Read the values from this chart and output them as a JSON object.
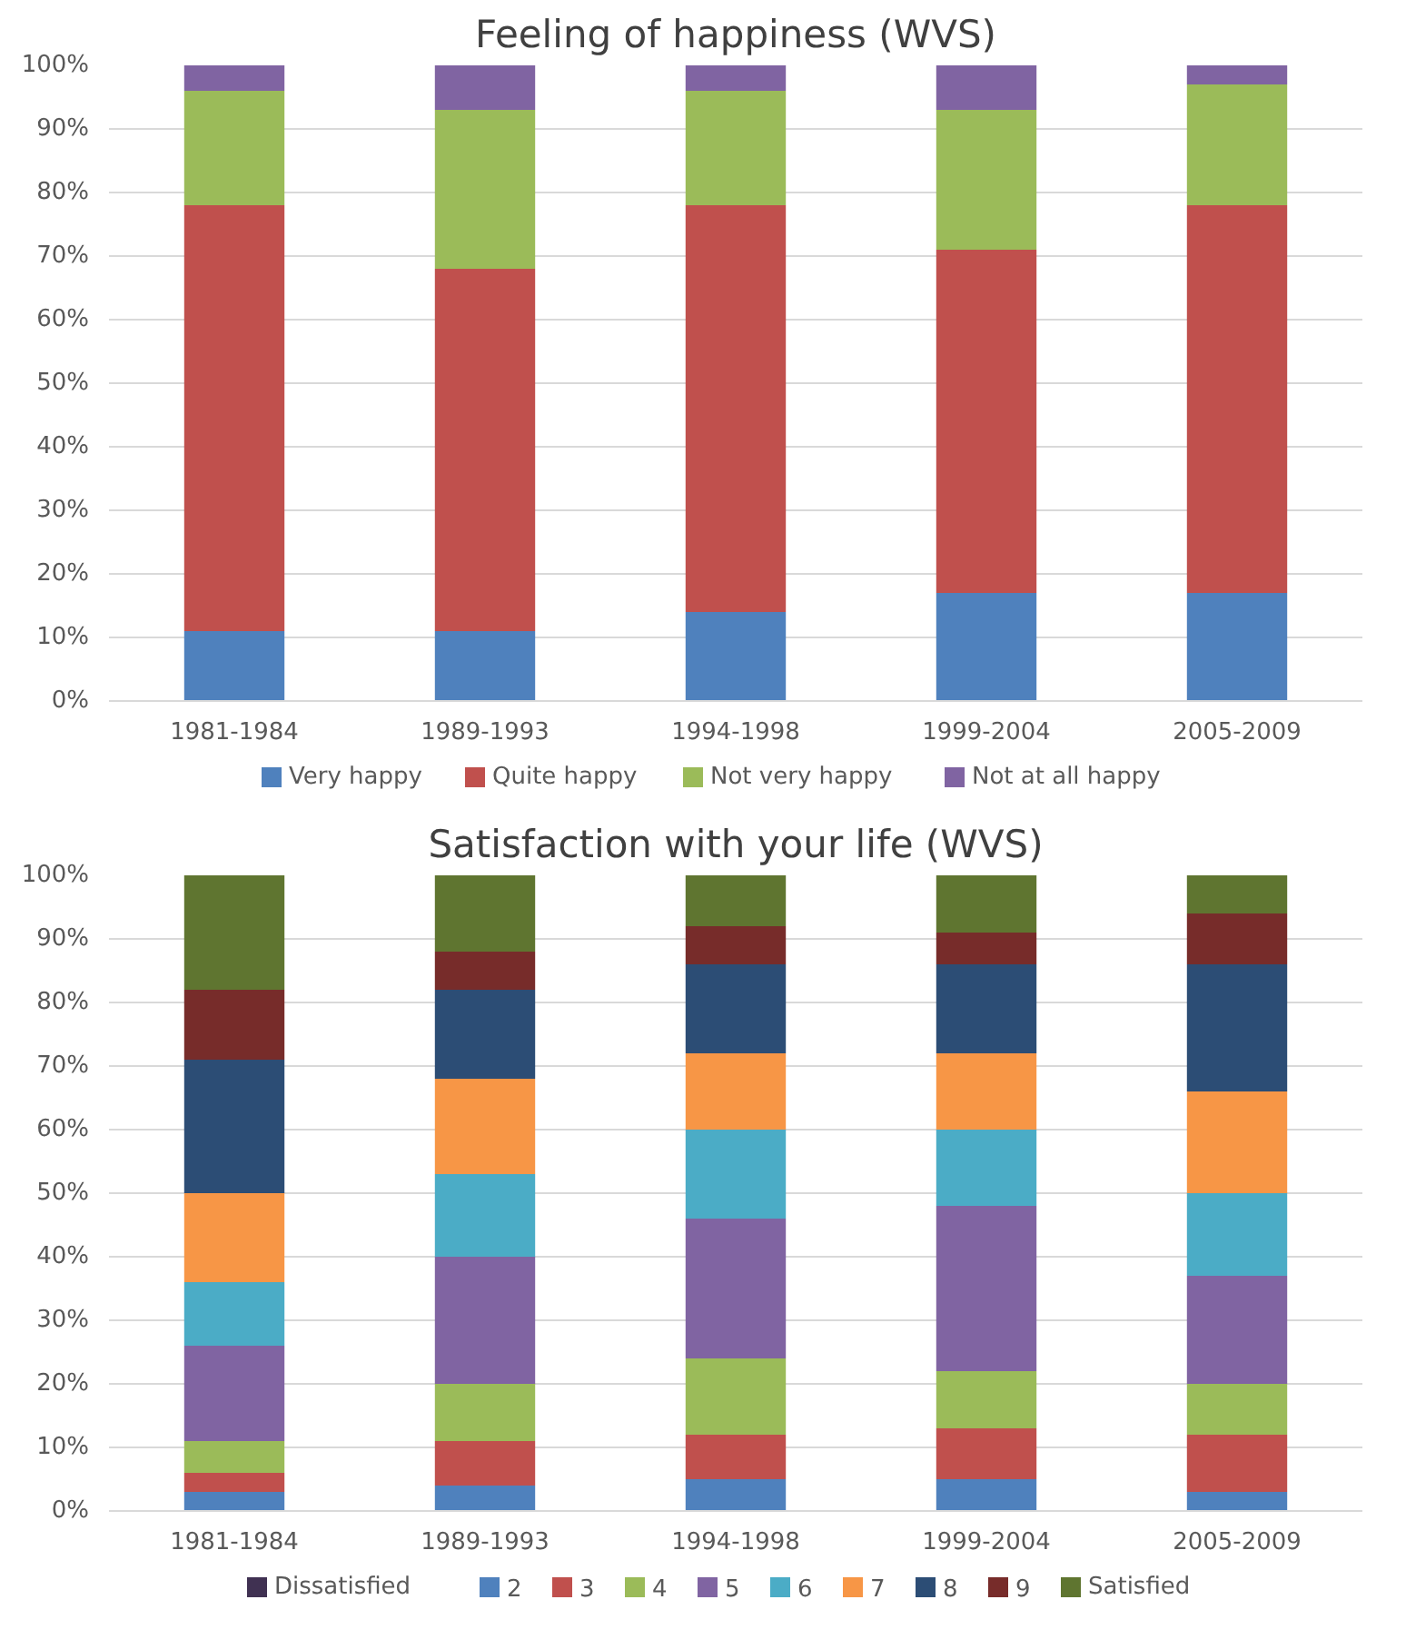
{
  "chart_data": [
    {
      "type": "bar",
      "stacked": true,
      "title": "Feeling of happiness (WVS)",
      "categories": [
        "1981-1984",
        "1989-1993",
        "1994-1998",
        "1999-2004",
        "2005-2009"
      ],
      "series": [
        {
          "name": "Very happy",
          "color": "#4f81bd",
          "values": [
            11,
            11,
            14,
            17,
            17
          ]
        },
        {
          "name": "Quite happy",
          "color": "#c0504d",
          "values": [
            67,
            57,
            64,
            54,
            61
          ]
        },
        {
          "name": "Not very happy",
          "color": "#9bbb59",
          "values": [
            18,
            25,
            18,
            22,
            19
          ]
        },
        {
          "name": "Not at all happy",
          "color": "#8064a2",
          "values": [
            4,
            7,
            4,
            7,
            3
          ]
        }
      ],
      "ylim": [
        0,
        100
      ],
      "yticks": [
        {
          "value": 0,
          "label": "0%"
        },
        {
          "value": 10,
          "label": "10%"
        },
        {
          "value": 20,
          "label": "20%"
        },
        {
          "value": 30,
          "label": "30%"
        },
        {
          "value": 40,
          "label": "40%"
        },
        {
          "value": 50,
          "label": "50%"
        },
        {
          "value": 60,
          "label": "60%"
        },
        {
          "value": 70,
          "label": "70%"
        },
        {
          "value": 80,
          "label": "80%"
        },
        {
          "value": 90,
          "label": "90%"
        },
        {
          "value": 100,
          "label": "100%"
        }
      ],
      "grid": "y",
      "legend": "bottom"
    },
    {
      "type": "bar",
      "stacked": true,
      "title": "Satisfaction with your life (WVS)",
      "categories": [
        "1981-1984",
        "1989-1993",
        "1994-1998",
        "1999-2004",
        "2005-2009"
      ],
      "series": [
        {
          "name": "Dissatisfied",
          "color": "#403152",
          "values": [
            0,
            0,
            0,
            0,
            0
          ]
        },
        {
          "name": "2",
          "color": "#4f81bd",
          "values": [
            3,
            4,
            5,
            5,
            3
          ]
        },
        {
          "name": "3",
          "color": "#c0504d",
          "values": [
            3,
            7,
            7,
            8,
            9
          ]
        },
        {
          "name": "4",
          "color": "#9bbb59",
          "values": [
            5,
            9,
            12,
            9,
            8
          ]
        },
        {
          "name": "5",
          "color": "#8064a2",
          "values": [
            15,
            20,
            22,
            26,
            17
          ]
        },
        {
          "name": "6",
          "color": "#4bacc6",
          "values": [
            10,
            13,
            14,
            12,
            13
          ]
        },
        {
          "name": "7",
          "color": "#f79646",
          "values": [
            14,
            15,
            12,
            12,
            16
          ]
        },
        {
          "name": "8",
          "color": "#2c4d75",
          "values": [
            21,
            14,
            14,
            14,
            20
          ]
        },
        {
          "name": "9",
          "color": "#772c2a",
          "values": [
            11,
            6,
            6,
            5,
            8
          ]
        },
        {
          "name": "Satisfied",
          "color": "#5f7530",
          "values": [
            18,
            12,
            8,
            9,
            6
          ]
        }
      ],
      "ylim": [
        0,
        100
      ],
      "yticks": [
        {
          "value": 0,
          "label": "0%"
        },
        {
          "value": 10,
          "label": "10%"
        },
        {
          "value": 20,
          "label": "20%"
        },
        {
          "value": 30,
          "label": "30%"
        },
        {
          "value": 40,
          "label": "40%"
        },
        {
          "value": 50,
          "label": "50%"
        },
        {
          "value": 60,
          "label": "60%"
        },
        {
          "value": 70,
          "label": "70%"
        },
        {
          "value": 80,
          "label": "80%"
        },
        {
          "value": 90,
          "label": "90%"
        },
        {
          "value": 100,
          "label": "100%"
        }
      ],
      "grid": "y",
      "legend": "bottom"
    }
  ]
}
